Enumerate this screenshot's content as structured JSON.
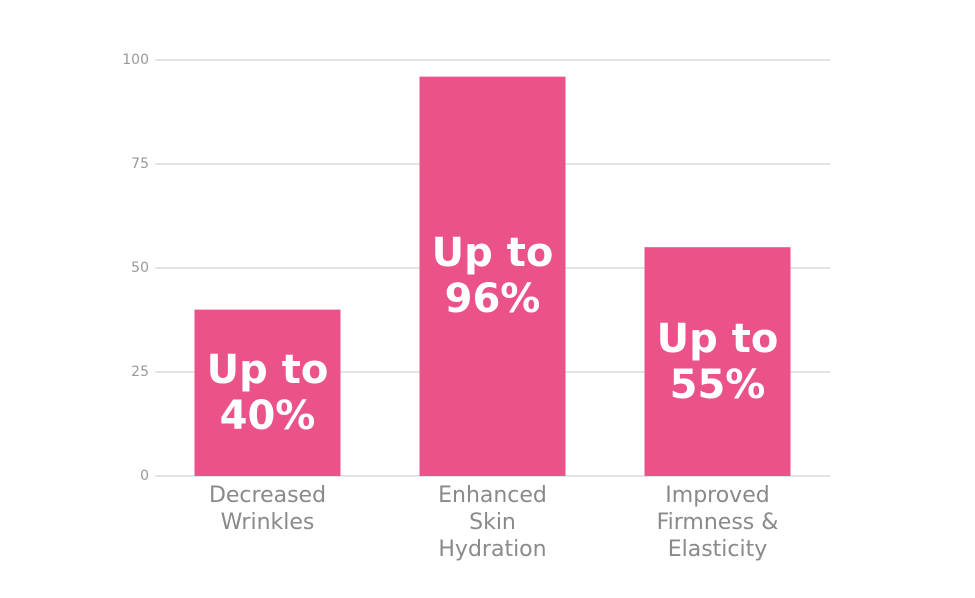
{
  "chart_data": {
    "type": "bar",
    "categories": [
      "Decreased Wrinkles",
      "Enhanced Skin Hydration",
      "Improved Firmness & Elasticity"
    ],
    "values": [
      40,
      96,
      55
    ],
    "value_labels": [
      "Up to 40%",
      "Up to 96%",
      "Up to 55%"
    ],
    "color": "#ea5289",
    "ylim": [
      0,
      100
    ],
    "yticks": [
      0,
      25,
      50,
      75,
      100
    ],
    "grid": true
  }
}
